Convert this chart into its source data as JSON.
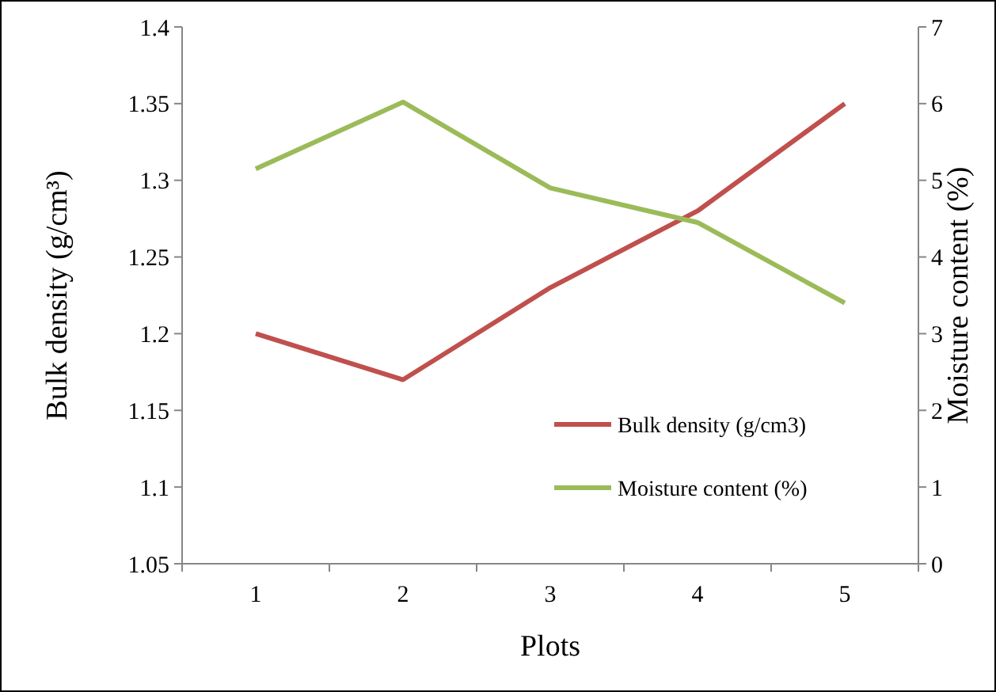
{
  "chart_data": {
    "type": "line",
    "xlabel": "Plots",
    "ylabel": "Bulk density (g/cm³)",
    "y2label": "Moisture content (%)",
    "categories": [
      "1",
      "2",
      "3",
      "4",
      "5"
    ],
    "series": [
      {
        "name": "Bulk density (g/cm3)",
        "color": "#c0504d",
        "values": [
          1.2,
          1.17,
          1.23,
          1.28,
          1.35
        ]
      },
      {
        "name": "Moisture content (%)",
        "color": "#9bbb59",
        "values": [
          5.15,
          6.02,
          4.9,
          4.45,
          3.4
        ],
        "axis": "y2"
      }
    ],
    "ylim": [
      1.05,
      1.4
    ],
    "yticks": [
      1.05,
      1.1,
      1.15,
      1.2,
      1.25,
      1.3,
      1.35,
      1.4
    ],
    "y2lim": [
      0,
      7
    ],
    "y2ticks": [
      0,
      1,
      2,
      3,
      4,
      5,
      6,
      7
    ],
    "legend": "right",
    "grid": false,
    "marker": "none",
    "line_style": "solid"
  }
}
